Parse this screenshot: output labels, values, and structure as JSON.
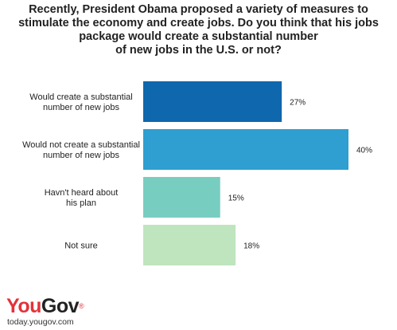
{
  "chart_data": {
    "type": "bar",
    "orientation": "horizontal",
    "title_lines": [
      "Recently, President Obama proposed a variety of measures to",
      "stimulate the economy and create jobs. Do you think that his jobs",
      "package would create a substantial number",
      "of new jobs in the U.S. or not?"
    ],
    "categories": [
      [
        "Would create a substantial",
        "number of new jobs"
      ],
      [
        "Would not create a substantial",
        "number of new jobs"
      ],
      [
        "Havn't heard about",
        "his plan"
      ],
      [
        "Not sure"
      ]
    ],
    "values": [
      27,
      40,
      15,
      18
    ],
    "value_labels": [
      "27%",
      "40%",
      "15%",
      "18%"
    ],
    "colors": [
      "#0f67ad",
      "#2e9fd0",
      "#78cdc1",
      "#bfe5bf"
    ],
    "xlim": [
      0,
      40
    ],
    "grid": false,
    "legend": "none"
  },
  "branding": {
    "logo_you": "You",
    "logo_gov": "Gov",
    "logo_mark": "®",
    "url": "today.yougov.com"
  }
}
